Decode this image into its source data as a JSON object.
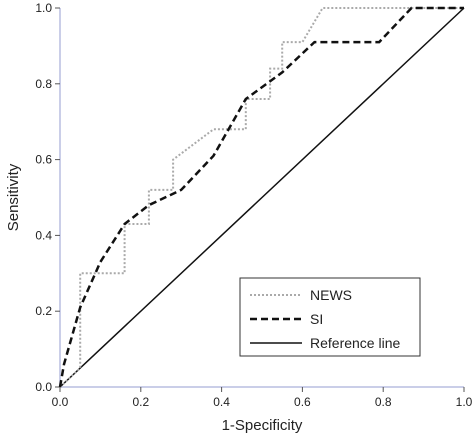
{
  "chart_data": {
    "type": "line",
    "title": "",
    "xlabel": "1-Specificity",
    "ylabel": "Sensitivity",
    "xlim": [
      0,
      1
    ],
    "ylim": [
      0,
      1
    ],
    "x_ticks": [
      "0.0",
      "0.2",
      "0.4",
      "0.6",
      "0.8",
      "1.0"
    ],
    "y_ticks": [
      "0.0",
      "0.2",
      "0.4",
      "0.6",
      "0.8",
      "1.0"
    ],
    "grid": false,
    "legend_position": "bottom-right",
    "series": [
      {
        "name": "NEWS",
        "style": "dotted",
        "color": "#aaaaaa",
        "points": [
          [
            0,
            0
          ],
          [
            0.05,
            0.05
          ],
          [
            0.05,
            0.3
          ],
          [
            0.16,
            0.3
          ],
          [
            0.16,
            0.43
          ],
          [
            0.22,
            0.43
          ],
          [
            0.22,
            0.52
          ],
          [
            0.28,
            0.52
          ],
          [
            0.28,
            0.6
          ],
          [
            0.38,
            0.68
          ],
          [
            0.46,
            0.68
          ],
          [
            0.46,
            0.76
          ],
          [
            0.52,
            0.76
          ],
          [
            0.52,
            0.84
          ],
          [
            0.55,
            0.84
          ],
          [
            0.55,
            0.91
          ],
          [
            0.6,
            0.91
          ],
          [
            0.65,
            1.0
          ],
          [
            1.0,
            1.0
          ]
        ]
      },
      {
        "name": "SI",
        "style": "dashed",
        "color": "#111111",
        "points": [
          [
            0,
            0
          ],
          [
            0.01,
            0.06
          ],
          [
            0.05,
            0.21
          ],
          [
            0.1,
            0.33
          ],
          [
            0.16,
            0.43
          ],
          [
            0.22,
            0.48
          ],
          [
            0.3,
            0.52
          ],
          [
            0.38,
            0.61
          ],
          [
            0.46,
            0.76
          ],
          [
            0.55,
            0.83
          ],
          [
            0.63,
            0.91
          ],
          [
            0.79,
            0.91
          ],
          [
            0.87,
            1.0
          ],
          [
            1.0,
            1.0
          ]
        ]
      },
      {
        "name": "Reference line",
        "style": "solid",
        "color": "#111111",
        "points": [
          [
            0,
            0
          ],
          [
            1,
            1
          ]
        ]
      }
    ]
  }
}
